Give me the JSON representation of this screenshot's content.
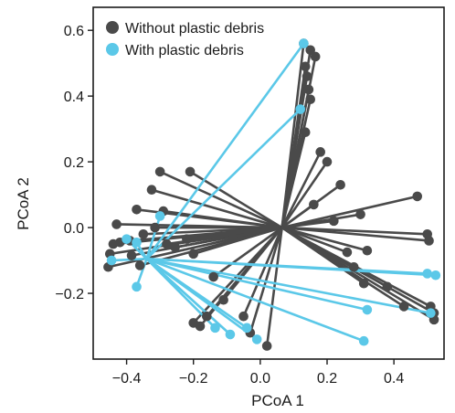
{
  "chart_data": {
    "type": "scatter",
    "title": "",
    "xlabel": "PCoA 1",
    "ylabel": "PCoA 2",
    "xlim": [
      -0.5,
      0.55
    ],
    "ylim": [
      -0.4,
      0.67
    ],
    "xticks": [
      -0.4,
      -0.2,
      0.0,
      0.2,
      0.4
    ],
    "xtick_labels": [
      "−0.4",
      "−0.2",
      "0.0",
      "0.2",
      "0.4"
    ],
    "yticks": [
      -0.2,
      0.0,
      0.2,
      0.4,
      0.6
    ],
    "ytick_labels": [
      "−0.2",
      "0.0",
      "0.2",
      "0.4",
      "0.6"
    ],
    "grid": false,
    "legend_position": "top-left",
    "series": [
      {
        "name": "Without plastic debris",
        "color": "#4a4a4a",
        "centroid": [
          0.065,
          0.0
        ],
        "points": [
          [
            -0.385,
            -0.085
          ],
          [
            -0.42,
            -0.045
          ],
          [
            -0.44,
            -0.05
          ],
          [
            -0.43,
            0.01
          ],
          [
            -0.45,
            -0.08
          ],
          [
            -0.455,
            -0.12
          ],
          [
            -0.35,
            -0.02
          ],
          [
            -0.36,
            -0.115
          ],
          [
            -0.39,
            -0.04
          ],
          [
            -0.37,
            0.055
          ],
          [
            -0.315,
            0.0
          ],
          [
            -0.3,
            0.17
          ],
          [
            -0.325,
            0.115
          ],
          [
            -0.21,
            0.17
          ],
          [
            -0.28,
            -0.05
          ],
          [
            -0.29,
            0.05
          ],
          [
            -0.255,
            -0.06
          ],
          [
            -0.22,
            -0.035
          ],
          [
            -0.2,
            -0.08
          ],
          [
            -0.14,
            -0.15
          ],
          [
            -0.11,
            -0.22
          ],
          [
            -0.2,
            -0.29
          ],
          [
            -0.18,
            -0.3
          ],
          [
            -0.16,
            -0.27
          ],
          [
            -0.05,
            -0.27
          ],
          [
            -0.03,
            -0.32
          ],
          [
            0.02,
            -0.36
          ],
          [
            0.13,
            0.56
          ],
          [
            0.15,
            0.54
          ],
          [
            0.165,
            0.52
          ],
          [
            0.135,
            0.49
          ],
          [
            0.14,
            0.46
          ],
          [
            0.145,
            0.42
          ],
          [
            0.15,
            0.39
          ],
          [
            0.135,
            0.29
          ],
          [
            0.18,
            0.23
          ],
          [
            0.2,
            0.2
          ],
          [
            0.16,
            0.07
          ],
          [
            0.22,
            0.02
          ],
          [
            0.3,
            0.04
          ],
          [
            0.24,
            0.13
          ],
          [
            0.47,
            0.095
          ],
          [
            0.5,
            -0.02
          ],
          [
            0.505,
            -0.04
          ],
          [
            0.26,
            -0.075
          ],
          [
            0.32,
            -0.07
          ],
          [
            0.28,
            -0.12
          ],
          [
            0.31,
            -0.17
          ],
          [
            0.38,
            -0.18
          ],
          [
            0.43,
            -0.24
          ],
          [
            0.51,
            -0.24
          ],
          [
            0.52,
            -0.26
          ],
          [
            0.52,
            -0.28
          ]
        ]
      },
      {
        "name": "With plastic debris",
        "color": "#5bc8e8",
        "centroid": [
          -0.34,
          -0.095
        ],
        "points": [
          [
            0.13,
            0.56
          ],
          [
            0.12,
            0.36
          ],
          [
            -0.3,
            0.035
          ],
          [
            -0.37,
            -0.045
          ],
          [
            -0.4,
            -0.035
          ],
          [
            -0.445,
            -0.1
          ],
          [
            -0.37,
            -0.18
          ],
          [
            -0.135,
            -0.305
          ],
          [
            -0.09,
            -0.325
          ],
          [
            -0.04,
            -0.305
          ],
          [
            -0.01,
            -0.34
          ],
          [
            0.31,
            -0.345
          ],
          [
            0.32,
            -0.25
          ],
          [
            0.5,
            -0.14
          ],
          [
            0.525,
            -0.145
          ],
          [
            0.51,
            -0.26
          ]
        ]
      }
    ]
  }
}
